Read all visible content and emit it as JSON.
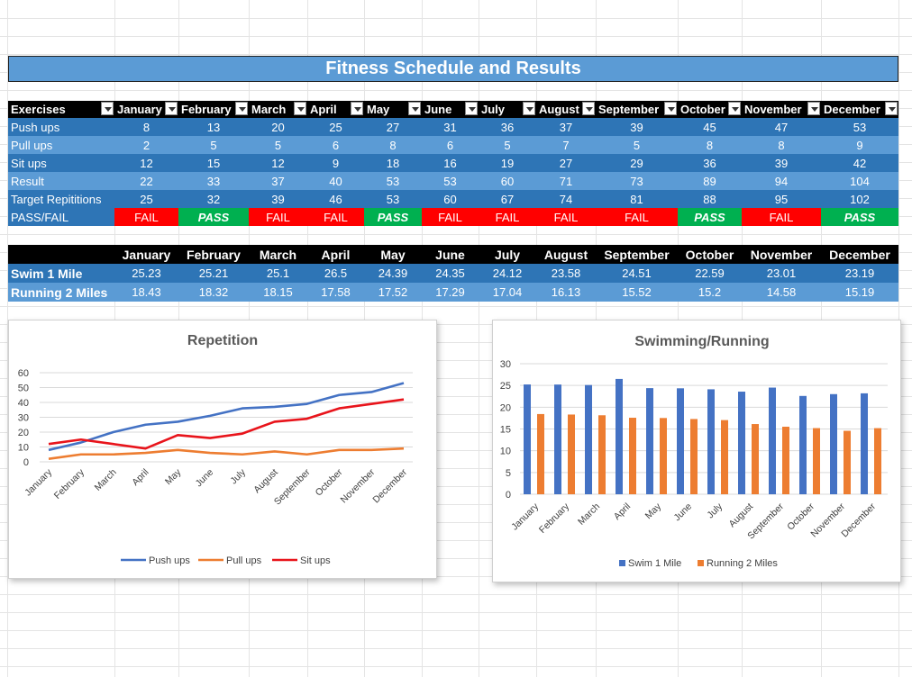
{
  "title": "Fitness Schedule and Results",
  "months": [
    "January",
    "February",
    "March",
    "April",
    "May",
    "June",
    "July",
    "August",
    "September",
    "October",
    "November",
    "December"
  ],
  "exercises_table": {
    "header_label": "Exercises",
    "rows": [
      {
        "label": "Push ups",
        "values": [
          "8",
          "13",
          "20",
          "25",
          "27",
          "31",
          "36",
          "37",
          "39",
          "45",
          "47",
          "53"
        ]
      },
      {
        "label": "Pull ups",
        "values": [
          "2",
          "5",
          "5",
          "6",
          "8",
          "6",
          "5",
          "7",
          "5",
          "8",
          "8",
          "9"
        ]
      },
      {
        "label": "Sit ups",
        "values": [
          "12",
          "15",
          "12",
          "9",
          "18",
          "16",
          "19",
          "27",
          "29",
          "36",
          "39",
          "42"
        ]
      },
      {
        "label": "Result",
        "values": [
          "22",
          "33",
          "37",
          "40",
          "53",
          "53",
          "60",
          "71",
          "73",
          "89",
          "94",
          "104"
        ]
      },
      {
        "label": "Target Repititions",
        "values": [
          "25",
          "32",
          "39",
          "46",
          "53",
          "60",
          "67",
          "74",
          "81",
          "88",
          "95",
          "102"
        ]
      }
    ],
    "passfail": {
      "label": "PASS/FAIL",
      "values": [
        "FAIL",
        "PASS",
        "FAIL",
        "FAIL",
        "PASS",
        "FAIL",
        "FAIL",
        "FAIL",
        "FAIL",
        "PASS",
        "FAIL",
        "PASS"
      ]
    }
  },
  "cardio_table": {
    "rows": [
      {
        "label": "Swim 1 Mile",
        "values": [
          "25.23",
          "25.21",
          "25.1",
          "26.5",
          "24.39",
          "24.35",
          "24.12",
          "23.58",
          "24.51",
          "22.59",
          "23.01",
          "23.19"
        ]
      },
      {
        "label": "Running 2 Miles",
        "values": [
          "18.43",
          "18.32",
          "18.15",
          "17.58",
          "17.52",
          "17.29",
          "17.04",
          "16.13",
          "15.52",
          "15.2",
          "14.58",
          "15.19"
        ]
      }
    ]
  },
  "colors": {
    "header_bg": "#000000",
    "row_dark": "#2e75b6",
    "row_light": "#5b9bd5",
    "fail": "#ff0000",
    "pass": "#00b050",
    "push_ups": "#4472c4",
    "pull_ups": "#ed7d31",
    "sit_ups": "#e8141b",
    "swim": "#4472c4",
    "run": "#ed7d31"
  },
  "chart_data": [
    {
      "type": "line",
      "title": "Repetition",
      "categories": [
        "January",
        "February",
        "March",
        "April",
        "May",
        "June",
        "July",
        "August",
        "September",
        "October",
        "November",
        "December"
      ],
      "series": [
        {
          "name": "Push ups",
          "values": [
            8,
            13,
            20,
            25,
            27,
            31,
            36,
            37,
            39,
            45,
            47,
            53
          ]
        },
        {
          "name": "Pull ups",
          "values": [
            2,
            5,
            5,
            6,
            8,
            6,
            5,
            7,
            5,
            8,
            8,
            9
          ]
        },
        {
          "name": "Sit ups",
          "values": [
            12,
            15,
            12,
            9,
            18,
            16,
            19,
            27,
            29,
            36,
            39,
            42
          ]
        }
      ],
      "ylim": [
        0,
        60
      ],
      "yticks": [
        "0",
        "10",
        "20",
        "30",
        "40",
        "50",
        "60"
      ],
      "legend": "bottom"
    },
    {
      "type": "bar",
      "title": "Swimming/Running",
      "categories": [
        "January",
        "February",
        "March",
        "April",
        "May",
        "June",
        "July",
        "August",
        "September",
        "October",
        "November",
        "December"
      ],
      "series": [
        {
          "name": "Swim 1 Mile",
          "values": [
            25.23,
            25.21,
            25.1,
            26.5,
            24.39,
            24.35,
            24.12,
            23.58,
            24.51,
            22.59,
            23.01,
            23.19
          ]
        },
        {
          "name": "Running 2 Miles",
          "values": [
            18.43,
            18.32,
            18.15,
            17.58,
            17.52,
            17.29,
            17.04,
            16.13,
            15.52,
            15.2,
            14.58,
            15.19
          ]
        }
      ],
      "ylim": [
        0,
        30
      ],
      "yticks": [
        "0",
        "5",
        "10",
        "15",
        "20",
        "25",
        "30"
      ],
      "legend": "bottom"
    }
  ]
}
